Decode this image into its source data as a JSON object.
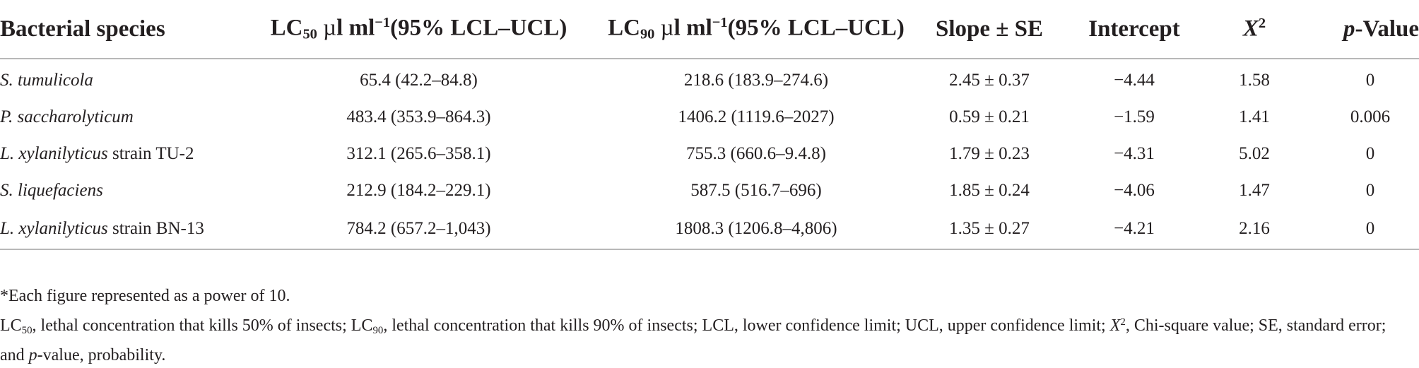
{
  "table": {
    "columns": [
      {
        "key": "species",
        "parts": [
          "Bacterial species"
        ]
      },
      {
        "key": "lc50",
        "parts": [
          "LC",
          "50",
          " ",
          "µ",
          "l ml",
          "−1",
          "(95% LCL–UCL)"
        ]
      },
      {
        "key": "lc90",
        "parts": [
          "LC",
          "90",
          " ",
          "µ",
          "l ml",
          "−1",
          "(95% LCL–UCL)"
        ]
      },
      {
        "key": "slope",
        "parts": [
          "Slope ± SE"
        ]
      },
      {
        "key": "intercept",
        "parts": [
          "Intercept"
        ]
      },
      {
        "key": "chi",
        "parts": [
          "X",
          "2"
        ]
      },
      {
        "key": "p",
        "parts": [
          "p",
          "-Value"
        ]
      }
    ],
    "rows": [
      {
        "species_italic": "S. tumulicola",
        "species_rest": "",
        "lc50": "65.4 (42.2–84.8)",
        "lc90": "218.6 (183.9–274.6)",
        "slope": "2.45 ± 0.37",
        "intercept": "−4.44",
        "chi": "1.58",
        "p": "0"
      },
      {
        "species_italic": "P. saccharolyticum",
        "species_rest": "",
        "lc50": "483.4 (353.9–864.3)",
        "lc90": "1406.2 (1119.6–2027)",
        "slope": "0.59 ± 0.21",
        "intercept": "−1.59",
        "chi": "1.41",
        "p": "0.006"
      },
      {
        "species_italic": "L. xylanilyticus",
        "species_rest": " strain TU-2",
        "lc50": "312.1 (265.6–358.1)",
        "lc90": "755.3 (660.6–9.4.8)",
        "slope": "1.79 ± 0.23",
        "intercept": "−4.31",
        "chi": "5.02",
        "p": "0"
      },
      {
        "species_italic": "S. liquefaciens",
        "species_rest": "",
        "lc50": "212.9 (184.2–229.1)",
        "lc90": "587.5 (516.7–696)",
        "slope": "1.85 ± 0.24",
        "intercept": "−4.06",
        "chi": "1.47",
        "p": "0"
      },
      {
        "species_italic": "L. xylanilyticus",
        "species_rest": " strain BN-13",
        "lc50": "784.2 (657.2–1,043)",
        "lc90": "1808.3 (1206.8–4,806)",
        "slope": "1.35 ± 0.27",
        "intercept": "−4.21",
        "chi": "2.16",
        "p": "0"
      }
    ]
  },
  "footnotes": {
    "note1": "*Each figure represented as a power of 10.",
    "legend_parts": [
      "LC",
      "50",
      ", lethal concentration that kills 50% of insects; LC",
      "90",
      ", lethal concentration that kills 90% of insects; LCL, lower confidence limit; UCL, upper confidence limit; ",
      "X",
      "2",
      ", Chi-square value; SE, standard error; and ",
      "p",
      "-value, probability."
    ]
  }
}
